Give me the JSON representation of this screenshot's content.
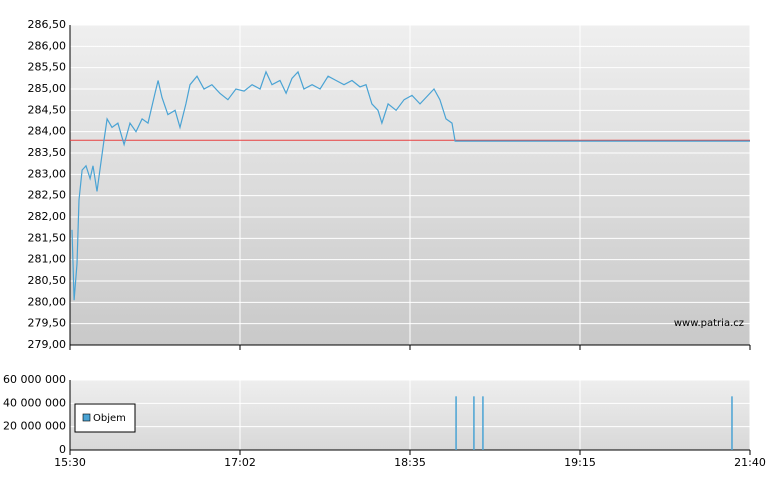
{
  "chart_data": [
    {
      "type": "line",
      "x": [
        0.012,
        0.024,
        0.041,
        0.053,
        0.071,
        0.094,
        0.118,
        0.135,
        0.159,
        0.176,
        0.2,
        0.218,
        0.247,
        0.282,
        0.318,
        0.353,
        0.388,
        0.424,
        0.459,
        0.5,
        0.518,
        0.541,
        0.576,
        0.618,
        0.647,
        0.682,
        0.706,
        0.747,
        0.788,
        0.835,
        0.882,
        0.929,
        0.976,
        1.024,
        1.071,
        1.118,
        1.153,
        1.188,
        1.235,
        1.271,
        1.306,
        1.341,
        1.376,
        1.424,
        1.471,
        1.518,
        1.565,
        1.612,
        1.659,
        1.706,
        1.741,
        1.776,
        1.812,
        1.835,
        1.871,
        1.918,
        1.965,
        2.012,
        2.059,
        2.106,
        2.141,
        2.176,
        2.212,
        2.247,
        2.265,
        4
      ],
      "values": [
        281.7,
        280.05,
        280.9,
        282.4,
        283.1,
        283.2,
        282.9,
        283.2,
        282.6,
        283.1,
        283.8,
        284.3,
        284.1,
        284.2,
        283.7,
        284.2,
        284.0,
        284.3,
        284.2,
        284.9,
        285.2,
        284.8,
        284.4,
        284.5,
        284.1,
        284.65,
        285.1,
        285.3,
        285.0,
        285.1,
        284.9,
        284.75,
        285.0,
        284.95,
        285.1,
        285.0,
        285.4,
        285.1,
        285.2,
        284.9,
        285.25,
        285.4,
        285.0,
        285.1,
        285.0,
        285.3,
        285.2,
        285.1,
        285.2,
        285.05,
        285.1,
        284.65,
        284.5,
        284.2,
        284.65,
        284.5,
        284.75,
        284.85,
        284.65,
        284.85,
        285.0,
        284.75,
        284.3,
        284.2,
        283.78,
        283.78
      ],
      "color": "#4aa3d4",
      "reference_value": 283.8,
      "reference_color": "#e84040",
      "xlim": [
        0,
        4
      ],
      "ylim": [
        279,
        286.5
      ],
      "yticks": [
        {
          "value": 279,
          "label": "279,00"
        },
        {
          "value": 279.5,
          "label": "279,50"
        },
        {
          "value": 280,
          "label": "280,00"
        },
        {
          "value": 280.5,
          "label": "280,50"
        },
        {
          "value": 281,
          "label": "281,00"
        },
        {
          "value": 281.5,
          "label": "281,50"
        },
        {
          "value": 282,
          "label": "282,00"
        },
        {
          "value": 282.5,
          "label": "282,50"
        },
        {
          "value": 283,
          "label": "283,00"
        },
        {
          "value": 283.5,
          "label": "283,50"
        },
        {
          "value": 284,
          "label": "284,00"
        },
        {
          "value": 284.5,
          "label": "284,50"
        },
        {
          "value": 285,
          "label": "285,00"
        },
        {
          "value": 285.5,
          "label": "285,50"
        },
        {
          "value": 286,
          "label": "286,00"
        },
        {
          "value": 286.5,
          "label": "286,50"
        }
      ],
      "grid": true,
      "annotation": "www.patria.cz"
    },
    {
      "type": "bar",
      "series": [
        {
          "name": "Objem",
          "color": "#4aa3d4",
          "x": [
            2.271,
            2.376,
            2.429,
            3.894
          ],
          "values": [
            46000000,
            46000000,
            46000000,
            46000000
          ]
        }
      ],
      "xlim": [
        0,
        4
      ],
      "xticks": [
        {
          "value": 0,
          "label": "15:30"
        },
        {
          "value": 1,
          "label": "17:02"
        },
        {
          "value": 2,
          "label": "18:35"
        },
        {
          "value": 3,
          "label": "19:15"
        },
        {
          "value": 4,
          "label": "21:40"
        }
      ],
      "ylim": [
        0,
        60000000
      ],
      "yticks": [
        0,
        {
          "value": 20000000,
          "label": "20 000 000"
        },
        {
          "value": 40000000,
          "label": "40 000 000"
        },
        {
          "value": 60000000,
          "label": "60 000 000"
        }
      ],
      "grid": true,
      "legend": "lower left"
    }
  ]
}
